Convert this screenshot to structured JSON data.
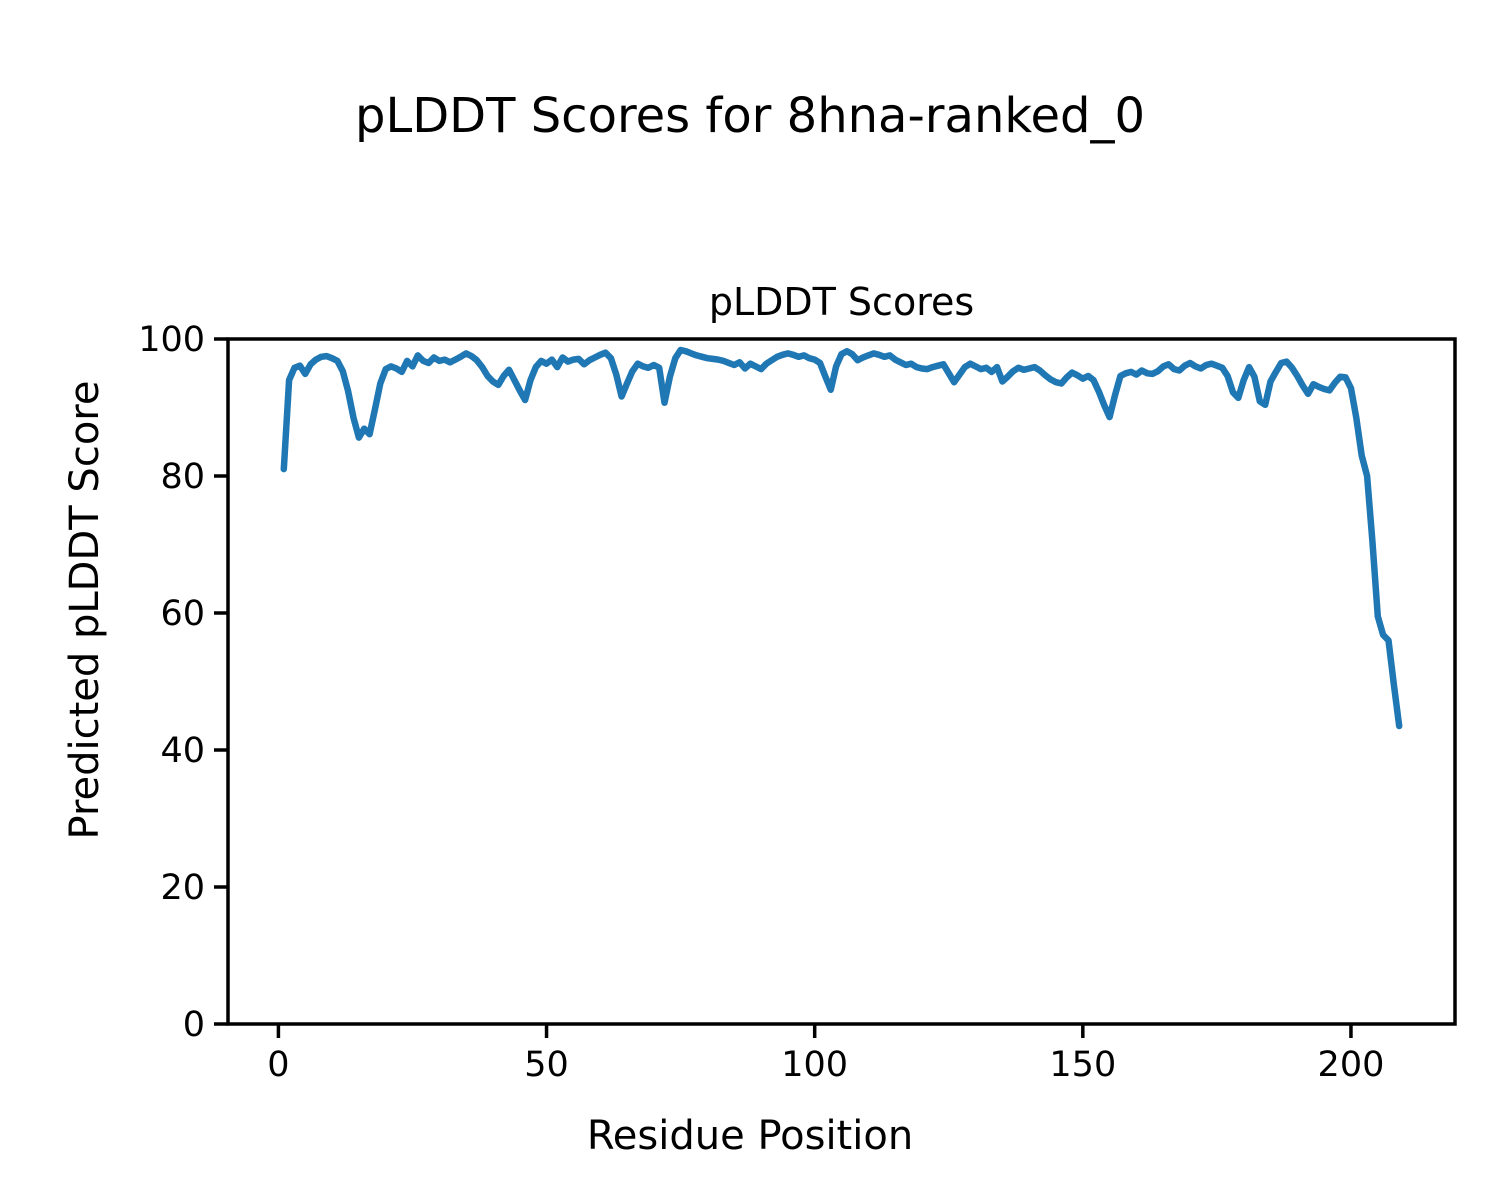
{
  "figure": {
    "suptitle": "pLDDT Scores for 8hna-ranked_0"
  },
  "chart_data": {
    "type": "line",
    "title": "pLDDT Scores",
    "xlabel": "Residue Position",
    "ylabel": "Predicted pLDDT Score",
    "xlim": [
      -9.4,
      219.4
    ],
    "ylim": [
      0,
      100
    ],
    "xticks": [
      0,
      50,
      100,
      150,
      200
    ],
    "yticks": [
      0,
      20,
      40,
      60,
      80,
      100
    ],
    "grid": false,
    "legend": "none",
    "line_color": "#1f77b4",
    "axis_color": "#000000",
    "series": [
      {
        "name": "pLDDT",
        "x_start": 1,
        "x_step": 1,
        "values": [
          81.0,
          94.0,
          95.8,
          96.1,
          94.9,
          96.3,
          97.0,
          97.4,
          97.5,
          97.2,
          96.8,
          95.3,
          92.4,
          88.5,
          85.6,
          86.9,
          86.1,
          89.7,
          93.5,
          95.6,
          96.0,
          95.7,
          95.2,
          96.8,
          96.0,
          97.6,
          96.8,
          96.5,
          97.3,
          96.8,
          97.0,
          96.6,
          97.0,
          97.4,
          97.9,
          97.5,
          96.9,
          95.9,
          94.6,
          93.8,
          93.3,
          94.6,
          95.5,
          94.0,
          92.5,
          91.1,
          94.0,
          95.9,
          96.8,
          96.4,
          97.0,
          95.9,
          97.3,
          96.7,
          97.0,
          97.1,
          96.3,
          96.9,
          97.3,
          97.7,
          98.0,
          97.2,
          94.8,
          91.6,
          93.5,
          95.3,
          96.4,
          96.0,
          95.8,
          96.2,
          95.8,
          90.7,
          94.5,
          97.2,
          98.4,
          98.2,
          97.9,
          97.6,
          97.4,
          97.2,
          97.1,
          97.0,
          96.8,
          96.5,
          96.2,
          96.6,
          95.7,
          96.4,
          96.0,
          95.6,
          96.4,
          96.9,
          97.4,
          97.7,
          97.9,
          97.7,
          97.4,
          97.6,
          97.2,
          97.0,
          96.5,
          94.5,
          92.6,
          96.0,
          97.8,
          98.2,
          97.8,
          96.9,
          97.3,
          97.6,
          97.9,
          97.7,
          97.4,
          97.6,
          97.0,
          96.6,
          96.2,
          96.4,
          95.9,
          95.7,
          95.6,
          95.9,
          96.1,
          96.3,
          95.0,
          93.7,
          94.8,
          95.9,
          96.4,
          96.0,
          95.6,
          95.8,
          95.2,
          95.9,
          93.8,
          94.5,
          95.3,
          95.8,
          95.5,
          95.7,
          95.9,
          95.4,
          94.7,
          94.1,
          93.7,
          93.5,
          94.4,
          95.1,
          94.7,
          94.2,
          94.6,
          94.0,
          92.3,
          90.3,
          88.6,
          91.8,
          94.6,
          95.0,
          95.2,
          94.8,
          95.4,
          95.0,
          94.9,
          95.3,
          96.0,
          96.3,
          95.6,
          95.4,
          96.1,
          96.5,
          96.0,
          95.7,
          96.2,
          96.4,
          96.1,
          95.8,
          94.6,
          92.2,
          91.4,
          94.0,
          95.9,
          94.5,
          90.9,
          90.4,
          93.8,
          95.2,
          96.5,
          96.7,
          95.8,
          94.6,
          93.2,
          92.0,
          93.4,
          93.0,
          92.7,
          92.5,
          93.6,
          94.5,
          94.4,
          92.8,
          88.5,
          83.0,
          80.0,
          70.5,
          59.5,
          56.8,
          56.0,
          49.5,
          43.5
        ]
      }
    ]
  }
}
